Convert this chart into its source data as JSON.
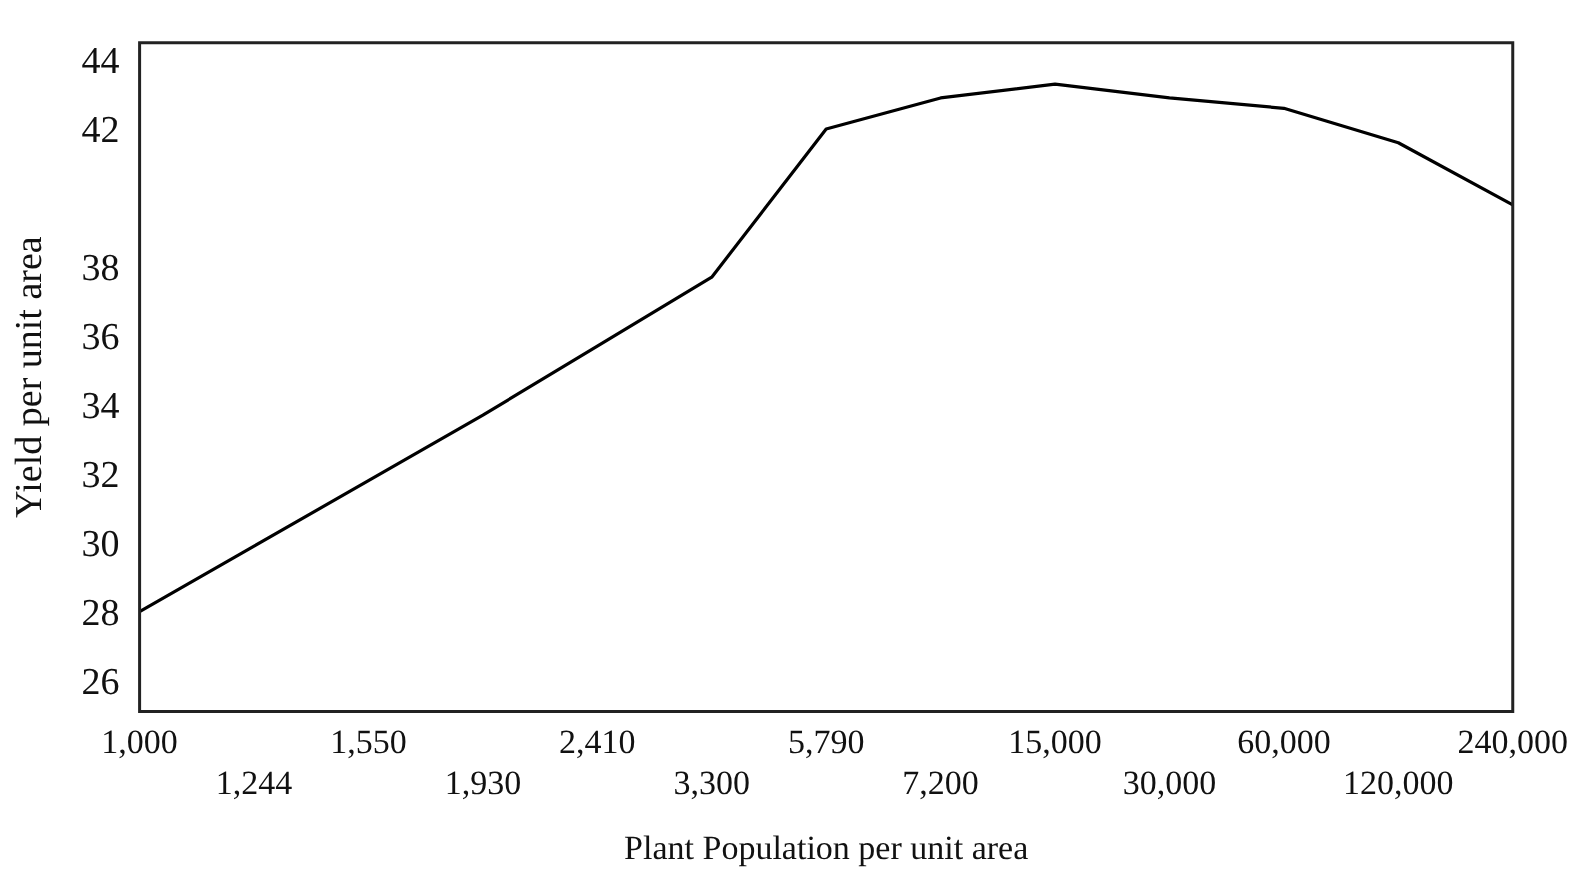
{
  "chart_data": {
    "type": "line",
    "xlabel": "Plant Population per unit area",
    "ylabel": "Yield per unit area",
    "categories": [
      "1,000",
      "1,244",
      "1,550",
      "1,930",
      "2,410",
      "3,300",
      "5,790",
      "7,200",
      "15,000",
      "30,000",
      "60,000",
      "120,000",
      "240,000"
    ],
    "series": [
      {
        "color": "#000000",
        "values": [
          28.1,
          30.0,
          31.9,
          33.8,
          35.8,
          37.8,
          42.1,
          43.0,
          43.4,
          43.0,
          42.7,
          41.7,
          39.9
        ]
      }
    ],
    "ylim": [
      25.2,
      44.6
    ],
    "yticks": [
      26,
      28,
      30,
      32,
      34,
      36,
      38,
      42,
      44
    ],
    "grid": false,
    "legend": false,
    "marker": "none",
    "line_style": "solid"
  }
}
